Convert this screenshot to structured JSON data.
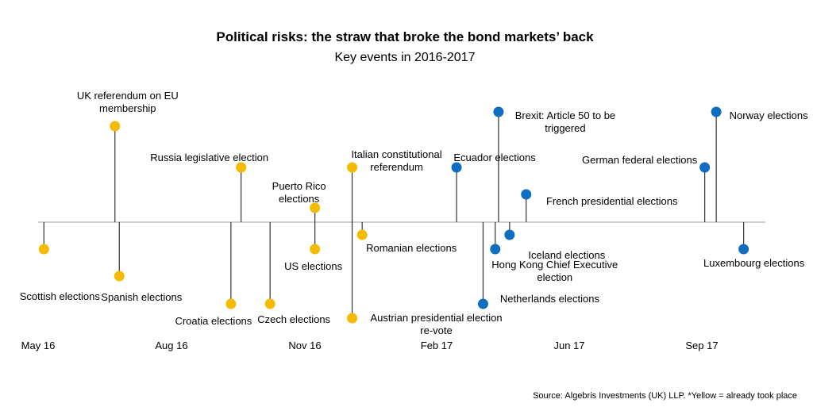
{
  "chart_data": {
    "type": "scatter",
    "title": "Political risks: the straw that broke the bond markets’ back",
    "subtitle": "Key events in 2016-2017",
    "source": "Source: Algebris Investments (UK) LLP. *Yellow = already took place",
    "x_ticks": [
      "May 16",
      "Aug 16",
      "Nov 16",
      "Feb 17",
      "Jun 17",
      "Sep 17"
    ],
    "colors": {
      "took_place": "#F5BB00",
      "upcoming": "#0F6EC0",
      "axis": "#b3b3b3",
      "stem": "#333333"
    },
    "events": [
      {
        "date": "2016-05-05",
        "label": [
          "Scottish elections"
        ],
        "status": "took_place",
        "side": "below",
        "level": 1
      },
      {
        "date": "2016-06-23",
        "label": [
          "UK referendum on EU",
          "membership"
        ],
        "status": "took_place",
        "side": "above",
        "level": 3.5
      },
      {
        "date": "2016-06-26",
        "label": [
          "Spanish elections"
        ],
        "status": "took_place",
        "side": "below",
        "level": 2
      },
      {
        "date": "2016-09-11",
        "label": [
          "Croatia elections"
        ],
        "status": "took_place",
        "side": "below",
        "level": 3
      },
      {
        "date": "2016-09-18",
        "label": [
          "Russia legislative election"
        ],
        "status": "took_place",
        "side": "above",
        "level": 2
      },
      {
        "date": "2016-10-08",
        "label": [
          "Czech elections"
        ],
        "status": "took_place",
        "side": "below",
        "level": 3
      },
      {
        "date": "2016-11-08",
        "label": [
          "US elections"
        ],
        "status": "took_place",
        "side": "below",
        "level": 1
      },
      {
        "date": "2016-11-08",
        "label": [
          "Puerto Rico",
          "elections"
        ],
        "status": "took_place",
        "side": "above",
        "level": 0.5
      },
      {
        "date": "2016-12-04",
        "label": [
          "Italian constitutional",
          "referendum"
        ],
        "status": "took_place",
        "side": "above",
        "level": 2
      },
      {
        "date": "2016-12-04",
        "label": [
          "Austrian presidential election",
          "re-vote"
        ],
        "status": "took_place",
        "side": "below",
        "level": 3.5
      },
      {
        "date": "2016-12-11",
        "label": [
          "Romanian elections"
        ],
        "status": "took_place",
        "side": "below",
        "level": 0.5
      },
      {
        "date": "2017-02-19",
        "label": [
          "Ecuador elections"
        ],
        "status": "upcoming",
        "side": "above",
        "level": 2
      },
      {
        "date": "2017-03-15",
        "label": [
          "Netherlands elections"
        ],
        "status": "upcoming",
        "side": "below",
        "level": 3
      },
      {
        "date": "2017-03-26",
        "label": [
          "Hong Kong Chief Executive",
          "election"
        ],
        "status": "upcoming",
        "side": "below",
        "level": 1
      },
      {
        "date": "2017-03-29",
        "label": [
          "Brexit: Article 50 to be",
          "triggered"
        ],
        "status": "upcoming",
        "side": "above",
        "level": 4
      },
      {
        "date": "2017-04-08",
        "label": [
          "Iceland elections"
        ],
        "status": "upcoming",
        "side": "below",
        "level": 0.5
      },
      {
        "date": "2017-04-23",
        "label": [
          "French presidential elections"
        ],
        "status": "upcoming",
        "side": "above",
        "level": 1
      },
      {
        "date": "2017-09-03",
        "label": [
          "German federal elections"
        ],
        "status": "upcoming",
        "side": "above",
        "level": 2
      },
      {
        "date": "2017-09-11",
        "label": [
          "Norway elections"
        ],
        "status": "upcoming",
        "side": "above",
        "level": 4
      },
      {
        "date": "2017-09-30",
        "label": [
          "Luxembourg elections"
        ],
        "status": "upcoming",
        "side": "below",
        "level": 1
      }
    ]
  }
}
